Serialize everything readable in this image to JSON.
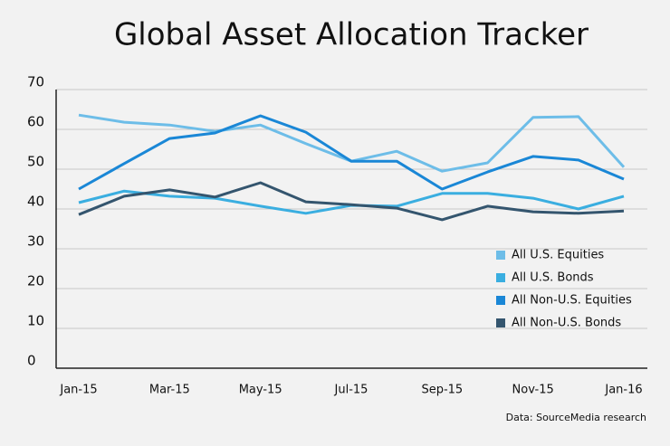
{
  "chart_data": {
    "type": "line",
    "title": "Global Asset Allocation Tracker",
    "categories": [
      "Jan-15",
      null,
      "Mar-15",
      null,
      "May-15",
      null,
      "Jul-15",
      null,
      "Sep-15",
      null,
      "Nov-15",
      null,
      "Jan-16"
    ],
    "series": [
      {
        "name": "All U.S. Equities",
        "color": "#6dbde8",
        "values": [
          63.6,
          61.8,
          61.1,
          59.5,
          61.1,
          56.4,
          52,
          54.5,
          49.5,
          51.6,
          63,
          63.2,
          50.5
        ]
      },
      {
        "name": "All U.S. Bonds",
        "color": "#3aaee0",
        "values": [
          41.6,
          44.5,
          43.2,
          42.7,
          40.7,
          38.9,
          40.9,
          40.7,
          43.9,
          43.9,
          42.7,
          40,
          43.2
        ]
      },
      {
        "name": "All Non-U.S. Equities",
        "color": "#1a87d6",
        "values": [
          45,
          51.4,
          57.7,
          59.1,
          63.4,
          59.3,
          52,
          52,
          45,
          49.3,
          53.2,
          52.3,
          47.5
        ]
      },
      {
        "name": "All Non-U.S. Bonds",
        "color": "#34556e",
        "values": [
          38.6,
          43.2,
          44.8,
          43,
          46.6,
          41.8,
          41.1,
          40.2,
          37.3,
          40.7,
          39.3,
          38.9,
          39.5
        ]
      }
    ],
    "ylim": [
      0,
      70
    ],
    "yticks": [
      0,
      10,
      20,
      30,
      40,
      50,
      60,
      70
    ],
    "grid": true,
    "legend": "bottom-right",
    "source": "Data: SourceMedia research"
  }
}
